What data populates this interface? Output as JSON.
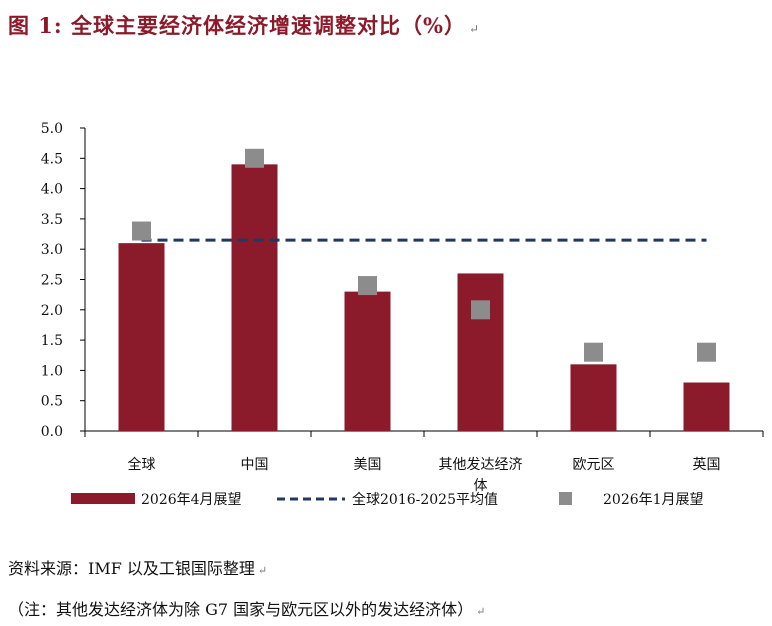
{
  "title": "图 1:  全球主要经济体经济增速调整对比（%）",
  "paragraph_mark": "↵",
  "notes": {
    "source": "资料来源：IMF 以及工银国际整理",
    "footnote": "（注：其他发达经济体为除 G7 国家与欧元区以外的发达经济体）"
  },
  "colors": {
    "title": "#8b1a2b",
    "bar": "#8b1a2b",
    "marker": "#8c8c8c",
    "dashed_line": "#1f3864",
    "axis": "#000000"
  },
  "chart_data": {
    "type": "bar",
    "categories": [
      "全球",
      "中国",
      "美国",
      "其他发达经济体",
      "欧元区",
      "英国"
    ],
    "series": [
      {
        "name": "2026年4月展望",
        "kind": "bar",
        "values": [
          3.1,
          4.4,
          2.3,
          2.6,
          1.1,
          0.8
        ]
      },
      {
        "name": "全球2016-2025平均值",
        "kind": "line",
        "style": "dashed",
        "values": [
          3.15,
          3.15,
          3.15,
          3.15,
          3.15,
          3.15
        ]
      },
      {
        "name": "2026年1月展望",
        "kind": "marker",
        "values": [
          3.3,
          4.5,
          2.4,
          2.0,
          1.3,
          1.3
        ]
      }
    ],
    "y_ticks": [
      "0.0",
      "0.5",
      "1.0",
      "1.5",
      "2.0",
      "2.5",
      "3.0",
      "3.5",
      "4.0",
      "4.5",
      "5.0"
    ],
    "ylim": [
      0,
      5
    ],
    "grid": false,
    "legend_position": "bottom"
  }
}
